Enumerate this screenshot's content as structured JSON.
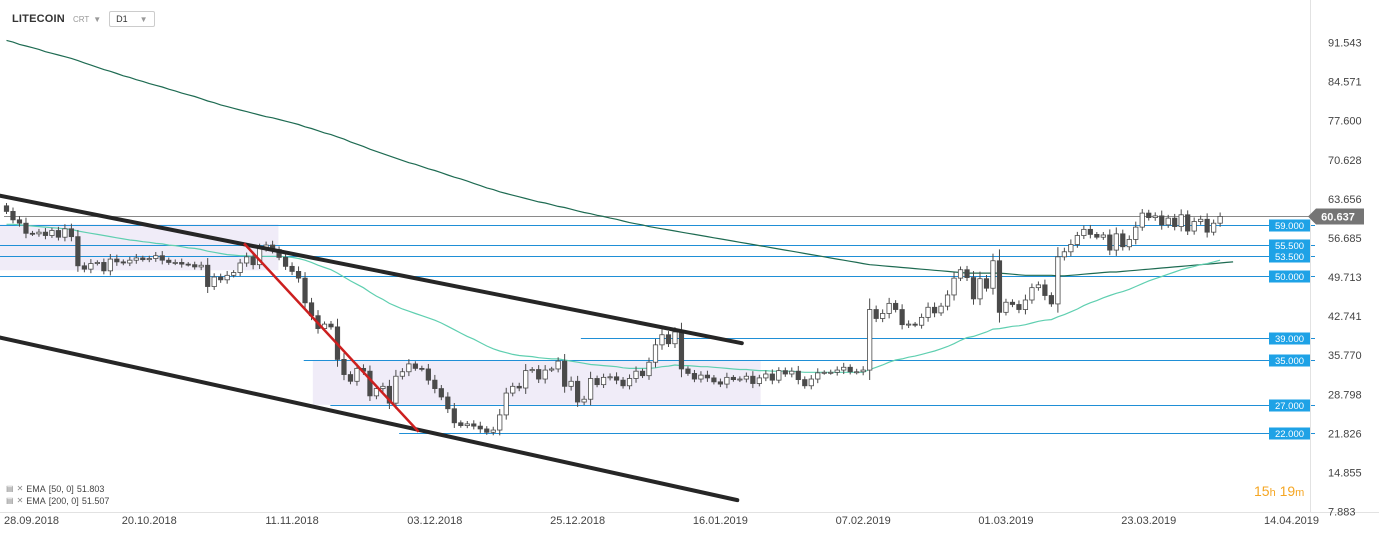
{
  "header": {
    "symbol": "LITECOIN",
    "source": "CRT",
    "timeframe": "D1"
  },
  "countdown": {
    "hours": "15",
    "hours_unit": "h",
    "minutes": "19",
    "minutes_unit": "m"
  },
  "legend": [
    {
      "label": "EMA",
      "params": "[50, 0]",
      "value": "51.803",
      "color": "#5fcfb0"
    },
    {
      "label": "EMA",
      "params": "[200, 0]",
      "value": "51.507",
      "color": "#1e6b52"
    }
  ],
  "colors": {
    "up_candle": "#ffffff",
    "down_candle": "#4a4a4a",
    "ema50": "#5fcfb0",
    "ema200": "#1e6b52",
    "level_line": "#1f8fd6",
    "level_label_bg": "#1ea2e6",
    "price_label_bg": "#757575",
    "channel": "#262626",
    "trend_red": "#cc1f1f",
    "range_box": "#ebe6f5"
  },
  "chart_data": {
    "type": "candlestick",
    "title": "",
    "xlabel": "",
    "ylabel": "",
    "ylim": [
      7.883,
      98.5
    ],
    "grid": false,
    "y_ticks": [
      "91.543",
      "84.571",
      "77.600",
      "70.628",
      "63.656",
      "56.685",
      "49.713",
      "42.741",
      "35.770",
      "28.798",
      "21.826",
      "14.855",
      "7.883"
    ],
    "x_ticks": [
      {
        "label": "28.09.2018",
        "i": 0
      },
      {
        "label": "20.10.2018",
        "i": 22
      },
      {
        "label": "11.11.2018",
        "i": 44
      },
      {
        "label": "03.12.2018",
        "i": 66
      },
      {
        "label": "25.12.2018",
        "i": 88
      },
      {
        "label": "16.01.2019",
        "i": 110
      },
      {
        "label": "07.02.2019",
        "i": 132
      },
      {
        "label": "01.03.2019",
        "i": 154
      },
      {
        "label": "23.03.2019",
        "i": 176
      },
      {
        "label": "14.04.2019",
        "i": 198
      }
    ],
    "last_price": "60.637",
    "close": [
      61.5,
      60.0,
      59.4,
      57.6,
      57.5,
      57.8,
      57.2,
      58.1,
      56.9,
      58.4,
      57.0,
      51.8,
      51.2,
      52.2,
      52.4,
      50.9,
      53.0,
      52.5,
      52.3,
      52.8,
      53.2,
      52.9,
      53.1,
      53.6,
      52.8,
      52.4,
      52.4,
      52.1,
      52.0,
      51.6,
      51.9,
      48.1,
      49.8,
      49.3,
      50.1,
      50.6,
      52.3,
      53.4,
      52.0,
      54.9,
      55.5,
      54.7,
      53.3,
      51.7,
      50.8,
      49.6,
      45.2,
      42.9,
      40.6,
      41.4,
      40.9,
      35.1,
      32.4,
      31.2,
      33.5,
      33.0,
      28.6,
      29.9,
      30.3,
      27.3,
      32.1,
      32.9,
      34.3,
      33.5,
      33.4,
      31.4,
      29.9,
      28.4,
      26.3,
      23.8,
      23.3,
      23.6,
      23.2,
      22.7,
      22.1,
      22.5,
      25.2,
      29.1,
      30.3,
      30.0,
      33.1,
      33.3,
      31.6,
      33.2,
      33.4,
      34.8,
      30.3,
      31.2,
      27.5,
      28.0,
      31.7,
      30.6,
      31.9,
      32.0,
      31.4,
      30.4,
      31.7,
      33.0,
      32.2,
      34.6,
      37.7,
      39.5,
      37.9,
      40.0,
      33.4,
      32.6,
      31.6,
      32.3,
      31.8,
      31.1,
      30.7,
      31.9,
      31.5,
      31.6,
      32.1,
      30.8,
      31.8,
      32.5,
      31.4,
      33.1,
      32.5,
      33.0,
      31.5,
      30.4,
      31.6,
      32.7,
      32.8,
      32.8,
      33.2,
      33.7,
      32.9,
      32.9,
      33.2,
      44.0,
      42.4,
      43.3,
      45.1,
      44.0,
      41.3,
      41.4,
      41.2,
      42.6,
      44.4,
      43.4,
      44.6,
      46.6,
      49.6,
      51.1,
      49.7,
      45.9,
      49.5,
      47.8,
      52.7,
      43.5,
      45.3,
      44.9,
      44.0,
      45.7,
      47.9,
      48.4,
      46.5,
      45.0,
      53.4,
      54.3,
      55.6,
      57.2,
      58.3,
      57.4,
      56.9,
      57.3,
      54.6,
      57.5,
      55.2,
      56.5,
      58.7,
      61.2,
      60.4,
      60.7,
      59.1,
      60.3,
      58.8,
      60.9,
      58.0,
      59.7,
      60.1,
      57.8,
      59.4,
      60.6
    ],
    "ema50": [
      59.2,
      59.2,
      59.1,
      59.0,
      58.9,
      58.8,
      58.7,
      58.6,
      58.5,
      58.4,
      58.3,
      58.0,
      57.8,
      57.6,
      57.4,
      57.2,
      57.0,
      56.8,
      56.6,
      56.4,
      56.3,
      56.1,
      56.0,
      55.8,
      55.7,
      55.5,
      55.4,
      55.2,
      55.0,
      54.9,
      54.7,
      54.4,
      54.2,
      54.0,
      53.8,
      53.7,
      53.6,
      53.6,
      53.5,
      53.5,
      53.5,
      53.5,
      53.5,
      53.4,
      53.3,
      53.1,
      52.8,
      52.4,
      51.9,
      51.5,
      51.1,
      50.5,
      49.8,
      49.1,
      48.5,
      47.9,
      47.1,
      46.4,
      45.8,
      45.1,
      44.6,
      44.1,
      43.7,
      43.3,
      42.9,
      42.5,
      42.1,
      41.6,
      41.0,
      40.4,
      39.8,
      39.2,
      38.7,
      38.1,
      37.5,
      37.0,
      36.6,
      36.3,
      36.0,
      35.8,
      35.7,
      35.6,
      35.4,
      35.3,
      35.2,
      35.2,
      35.0,
      34.8,
      34.6,
      34.4,
      34.2,
      34.1,
      34.0,
      33.9,
      33.8,
      33.6,
      33.5,
      33.5,
      33.5,
      33.5,
      33.6,
      33.8,
      33.9,
      34.1,
      34.0,
      34.0,
      33.9,
      33.8,
      33.8,
      33.7,
      33.6,
      33.5,
      33.4,
      33.3,
      33.3,
      33.2,
      33.1,
      33.1,
      33.0,
      33.0,
      33.0,
      33.0,
      32.9,
      32.8,
      32.8,
      32.8,
      32.8,
      32.8,
      32.8,
      32.8,
      32.8,
      32.8,
      32.8,
      33.3,
      33.7,
      34.1,
      34.6,
      35.0,
      35.2,
      35.5,
      35.7,
      36.0,
      36.3,
      36.6,
      37.0,
      37.4,
      37.9,
      38.5,
      39.0,
      39.2,
      39.6,
      40.0,
      40.5,
      40.6,
      40.8,
      41.0,
      41.1,
      41.3,
      41.6,
      41.9,
      42.1,
      42.2,
      42.7,
      43.1,
      43.6,
      44.1,
      44.7,
      45.2,
      45.6,
      46.1,
      46.5,
      46.9,
      47.2,
      47.6,
      48.1,
      48.6,
      49.1,
      49.5,
      49.9,
      50.3,
      50.7,
      51.1,
      51.4,
      51.7,
      52.0,
      52.2,
      52.5,
      52.8
    ],
    "ema200": [
      92.0,
      91.7,
      91.3,
      91.0,
      90.7,
      90.4,
      90.0,
      89.7,
      89.4,
      89.1,
      88.8,
      88.4,
      88.0,
      87.6,
      87.2,
      86.8,
      86.5,
      86.1,
      85.7,
      85.4,
      85.0,
      84.7,
      84.3,
      84.0,
      83.7,
      83.3,
      83.0,
      82.6,
      82.3,
      82.0,
      81.6,
      81.2,
      80.9,
      80.5,
      80.2,
      79.9,
      79.6,
      79.3,
      79.0,
      78.7,
      78.4,
      78.2,
      77.9,
      77.6,
      77.3,
      77.0,
      76.6,
      76.3,
      75.9,
      75.5,
      75.2,
      74.8,
      74.4,
      73.9,
      73.5,
      73.1,
      72.6,
      72.2,
      71.8,
      71.4,
      71.0,
      70.6,
      70.2,
      69.9,
      69.5,
      69.1,
      68.8,
      68.4,
      68.0,
      67.6,
      67.3,
      66.9,
      66.5,
      66.1,
      65.7,
      65.4,
      65.0,
      64.7,
      64.4,
      64.1,
      63.8,
      63.5,
      63.2,
      63.0,
      62.7,
      62.4,
      62.2,
      61.9,
      61.6,
      61.3,
      61.1,
      60.8,
      60.6,
      60.3,
      60.1,
      59.8,
      59.5,
      59.3,
      59.1,
      58.8,
      58.6,
      58.4,
      58.2,
      58.0,
      57.8,
      57.6,
      57.4,
      57.2,
      57.0,
      56.8,
      56.6,
      56.4,
      56.2,
      56.0,
      55.8,
      55.6,
      55.4,
      55.2,
      55.0,
      54.8,
      54.6,
      54.4,
      54.2,
      54.0,
      53.8,
      53.6,
      53.4,
      53.2,
      53.0,
      52.8,
      52.6,
      52.4,
      52.2,
      52.0,
      51.9,
      51.8,
      51.7,
      51.6,
      51.5,
      51.4,
      51.3,
      51.2,
      51.1,
      51.0,
      50.9,
      50.8,
      50.7,
      50.6,
      50.5,
      50.5,
      50.5,
      50.5,
      50.5,
      50.5,
      50.4,
      50.3,
      50.2,
      50.1,
      50.1,
      50.1,
      50.1,
      50.1,
      50.0,
      50.0,
      50.1,
      50.2,
      50.3,
      50.4,
      50.5,
      50.6,
      50.7,
      50.7,
      50.8,
      50.9,
      51.0,
      51.1,
      51.2,
      51.3,
      51.4,
      51.5,
      51.6,
      51.7,
      51.8,
      51.9,
      52.0,
      52.1,
      52.2,
      52.3,
      52.4,
      52.5
    ],
    "levels": [
      {
        "value": 59.0,
        "label": "59.000",
        "x0": -1
      },
      {
        "value": 55.5,
        "label": "55.500",
        "x0": -1
      },
      {
        "value": 53.5,
        "label": "53.500",
        "x0": -1
      },
      {
        "value": 50.0,
        "label": "50.000",
        "x0": -1
      },
      {
        "value": 39.0,
        "label": "39.000",
        "x0": 88.5
      },
      {
        "value": 35.0,
        "label": "35.000",
        "x0": 45.8
      },
      {
        "value": 27.0,
        "label": "27.000",
        "x0": 49.9
      },
      {
        "value": 22.0,
        "label": "22.000",
        "x0": 60.5
      }
    ],
    "range_boxes": [
      {
        "i0": -1,
        "i1": 41.9,
        "y0": 51.0,
        "y1": 59.2
      },
      {
        "i0": 47.2,
        "i1": 116.2,
        "y0": 27.0,
        "y1": 35.0
      }
    ],
    "channel_lines": [
      {
        "p0": [
          -1,
          64.3
        ],
        "p1": [
          113.3,
          38.0
        ]
      },
      {
        "p0": [
          -1,
          39.0
        ],
        "p1": [
          112.6,
          10.0
        ]
      }
    ],
    "trend_line": {
      "p0": [
        36.6,
        55.8
      ],
      "p1": [
        63.5,
        22.2
      ]
    }
  }
}
